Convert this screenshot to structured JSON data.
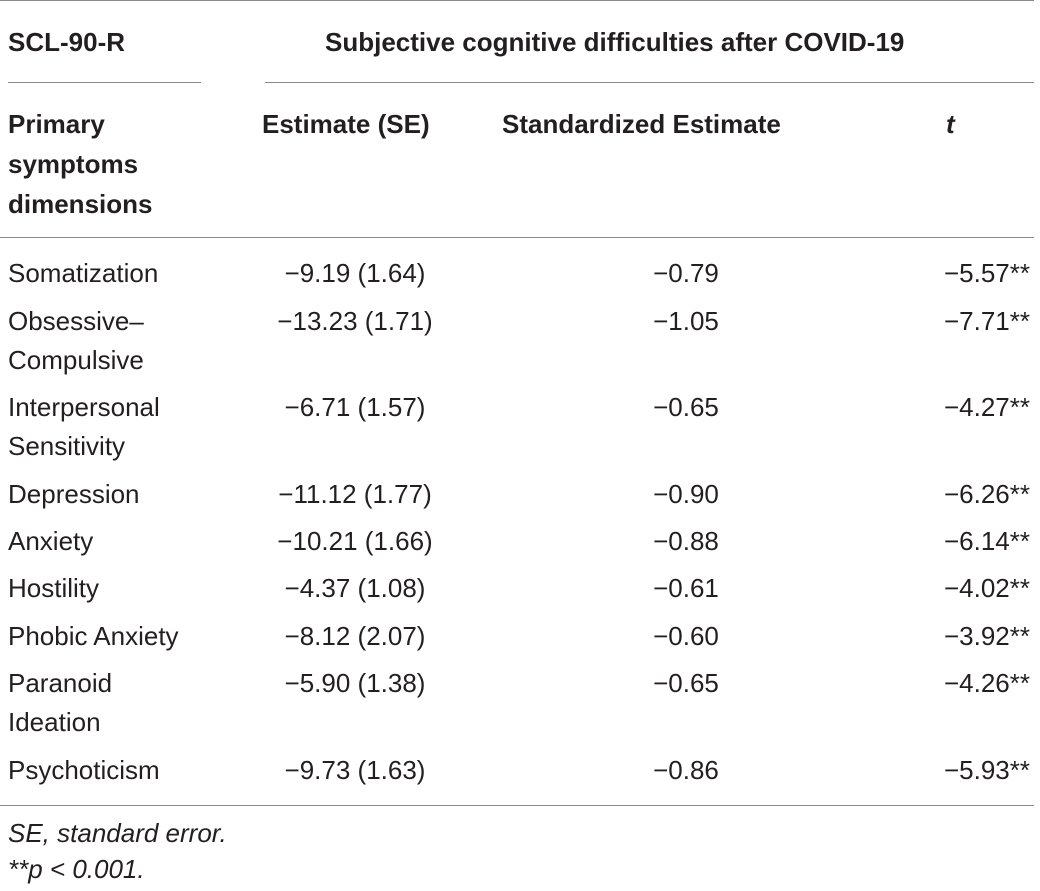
{
  "header": {
    "left_title": "SCL-90-R",
    "span_title": "Subjective cognitive difficulties after COVID-19",
    "col_label": "Primary symptoms dimensions",
    "col_estimate": "Estimate (SE)",
    "col_standardized": "Standardized Estimate",
    "col_t": "t"
  },
  "rows": [
    {
      "label": "Somatization",
      "estimate": "−9.19 (1.64)",
      "standardized": "−0.79",
      "t": "−5.57**"
    },
    {
      "label": "Obsessive– Compulsive",
      "estimate": "−13.23 (1.71)",
      "standardized": "−1.05",
      "t": "−7.71**"
    },
    {
      "label": "Interpersonal Sensitivity",
      "estimate": "−6.71 (1.57)",
      "standardized": "−0.65",
      "t": "−4.27**"
    },
    {
      "label": "Depression",
      "estimate": "−11.12 (1.77)",
      "standardized": "−0.90",
      "t": "−6.26**"
    },
    {
      "label": "Anxiety",
      "estimate": "−10.21 (1.66)",
      "standardized": "−0.88",
      "t": "−6.14**"
    },
    {
      "label": "Hostility",
      "estimate": "−4.37 (1.08)",
      "standardized": "−0.61",
      "t": "−4.02**"
    },
    {
      "label": "Phobic Anxiety",
      "estimate": "−8.12 (2.07)",
      "standardized": "−0.60",
      "t": "−3.92**"
    },
    {
      "label": "Paranoid Ideation",
      "estimate": "−5.90 (1.38)",
      "standardized": "−0.65",
      "t": "−4.26**"
    },
    {
      "label": "Psychoticism",
      "estimate": "−9.73 (1.63)",
      "standardized": "−0.86",
      "t": "−5.93**"
    }
  ],
  "footnotes": {
    "se": "SE, standard error.",
    "p": "**p < 0.001."
  }
}
